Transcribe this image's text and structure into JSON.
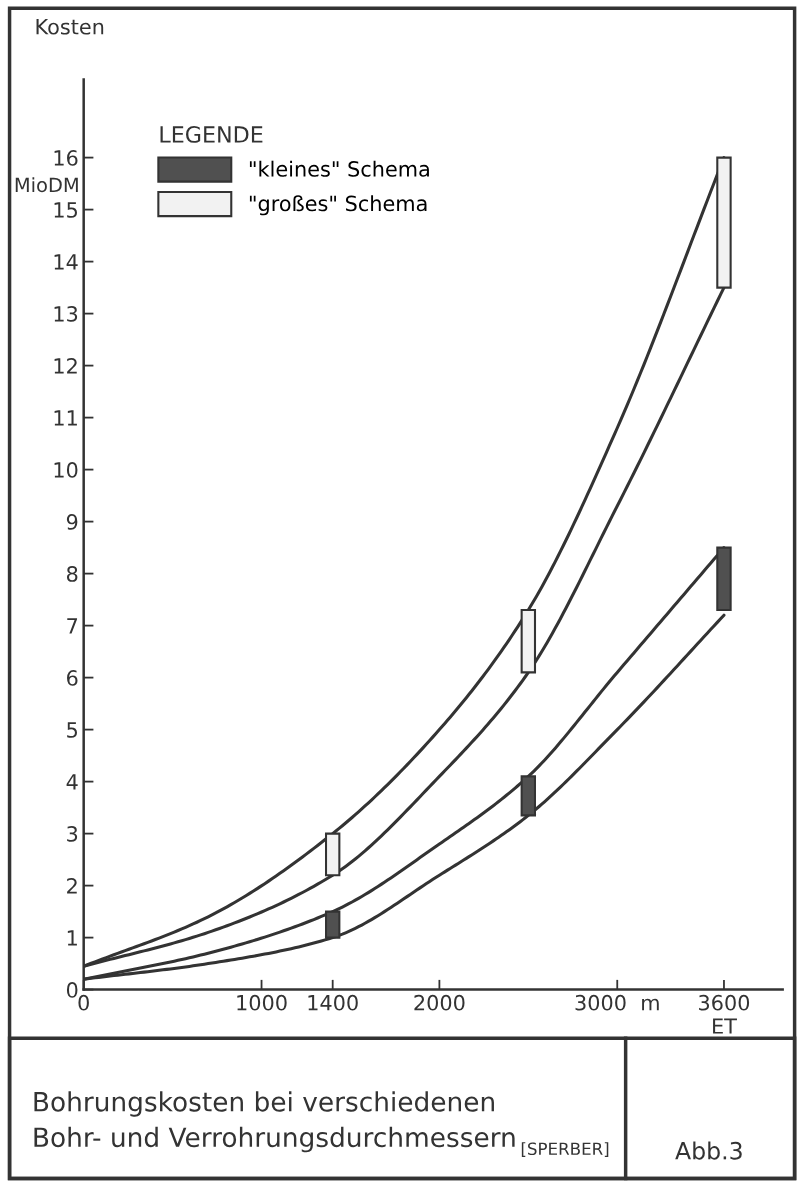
{
  "chart_data": {
    "type": "line",
    "title": "Bohrungskosten bei verschiedenen\nBohr- und Verrohrungsdurchmessern",
    "ylabel": "Kosten",
    "legend_title": "LEGENDE",
    "annotations": [
      "MioDM",
      "[SPERBER]",
      "Abb.3"
    ],
    "xlim": [
      0,
      3930
    ],
    "ylim": [
      0,
      17.5
    ],
    "xticks": [
      0,
      1000,
      1400,
      2000,
      {
        "value": 3000,
        "label": "3000  m"
      },
      {
        "value": 3600,
        "label": "3600\nET"
      }
    ],
    "yticks": [
      0,
      1,
      2,
      3,
      4,
      5,
      6,
      7,
      8,
      9,
      10,
      11,
      12,
      13,
      14,
      15,
      16
    ],
    "grid": false,
    "legend": "top left",
    "marker": "none",
    "line_style": "solid",
    "series": [
      {
        "color": "#333333",
        "x": [
          0,
          700,
          1400,
          2000,
          2500,
          3000,
          3600
        ],
        "values": [
          0.45,
          1.4,
          3.0,
          5.0,
          7.3,
          10.8,
          16.0
        ]
      },
      {
        "color": "#333333",
        "x": [
          0,
          700,
          1400,
          2000,
          2500,
          3000,
          3600
        ],
        "values": [
          0.45,
          1.1,
          2.2,
          4.1,
          6.1,
          9.3,
          13.5
        ]
      },
      {
        "color": "#333333",
        "x": [
          0,
          700,
          1400,
          2000,
          2500,
          3000,
          3600
        ],
        "values": [
          0.2,
          0.7,
          1.5,
          2.8,
          4.1,
          6.1,
          8.5
        ]
      },
      {
        "color": "#333333",
        "x": [
          0,
          700,
          1400,
          2000,
          2500,
          3000,
          3600
        ],
        "values": [
          0.2,
          0.5,
          1.0,
          2.2,
          3.35,
          5.0,
          7.2
        ]
      },
      {
        "type": "bar",
        "name": "\"kleines\" Schema",
        "color": "#505050",
        "x": [
          1400,
          2500,
          3600
        ],
        "base": [
          1.0,
          3.35,
          7.3
        ],
        "values": [
          0.5,
          0.75,
          1.2
        ]
      },
      {
        "type": "bar",
        "name": "\"großes\" Schema",
        "color": "#f2f2f2",
        "x": [
          1400,
          2500,
          3600
        ],
        "base": [
          2.2,
          6.1,
          13.5
        ],
        "values": [
          0.8,
          1.2,
          2.5
        ]
      }
    ]
  }
}
